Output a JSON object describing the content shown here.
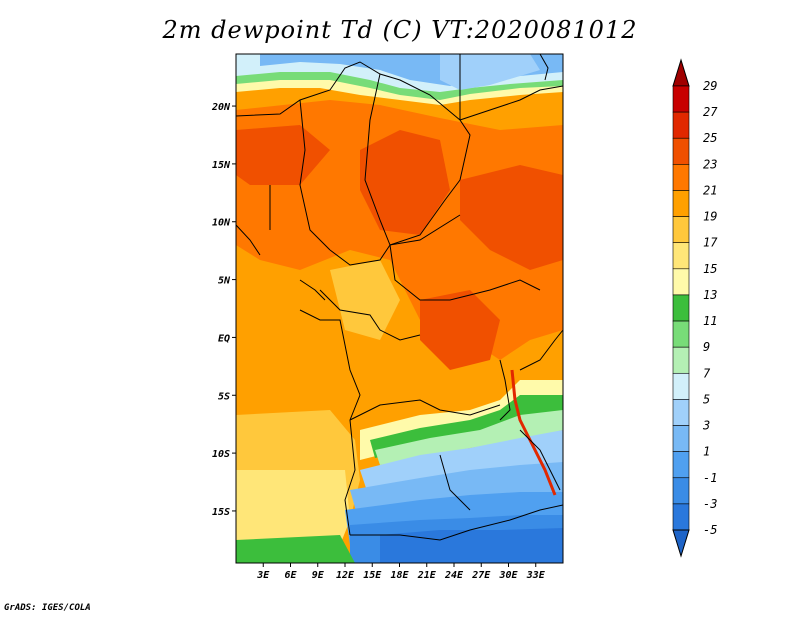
{
  "title": "2m dewpoint Td (C) VT:2020081012",
  "credit": "GrADS: IGES/COLA",
  "colors": {
    "c_le_-5": "#1e64c8",
    "c_-5_-3": "#2a78dc",
    "c_-3_-1": "#3a8ce6",
    "c_-1_1": "#50a0f0",
    "c_1_3": "#78b9f5",
    "c_3_5": "#a0d0fa",
    "c_5_7": "#d2f0fa",
    "c_7_9": "#b4f0b4",
    "c_9_11": "#78dc78",
    "c_11_13": "#3cbe3c",
    "c_13_15": "#fffaaa",
    "c_15_17": "#ffe678",
    "c_17_19": "#ffc83c",
    "c_19_21": "#ffa000",
    "c_21_23": "#ff7800",
    "c_23_25": "#f05000",
    "c_25_27": "#e12800",
    "c_27_29": "#c80000",
    "c_gt_29": "#a00000"
  },
  "map": {
    "variable": "2m dewpoint",
    "units": "C",
    "valid_time": "2020081012",
    "lon_range": [
      0,
      36
    ],
    "lat_range": [
      -19.5,
      24.5
    ],
    "x_ticks": [
      "3E",
      "6E",
      "9E",
      "12E",
      "15E",
      "18E",
      "21E",
      "24E",
      "27E",
      "30E",
      "33E"
    ],
    "x_tick_values": [
      3,
      6,
      9,
      12,
      15,
      18,
      21,
      24,
      27,
      30,
      33
    ],
    "y_ticks": [
      "20N",
      "15N",
      "10N",
      "5N",
      "EQ",
      "5S",
      "10S",
      "15S"
    ],
    "y_tick_values": [
      20,
      15,
      10,
      5,
      0,
      -5,
      -10,
      -15
    ]
  },
  "colorbar": {
    "labels": [
      "29",
      "27",
      "25",
      "23",
      "21",
      "19",
      "17",
      "15",
      "13",
      "11",
      "9",
      "7",
      "5",
      "3",
      "1",
      "-1",
      "-3",
      "-5"
    ],
    "levels": [
      29,
      27,
      25,
      23,
      21,
      19,
      17,
      15,
      13,
      11,
      9,
      7,
      5,
      3,
      1,
      -1,
      -3,
      -5
    ]
  }
}
